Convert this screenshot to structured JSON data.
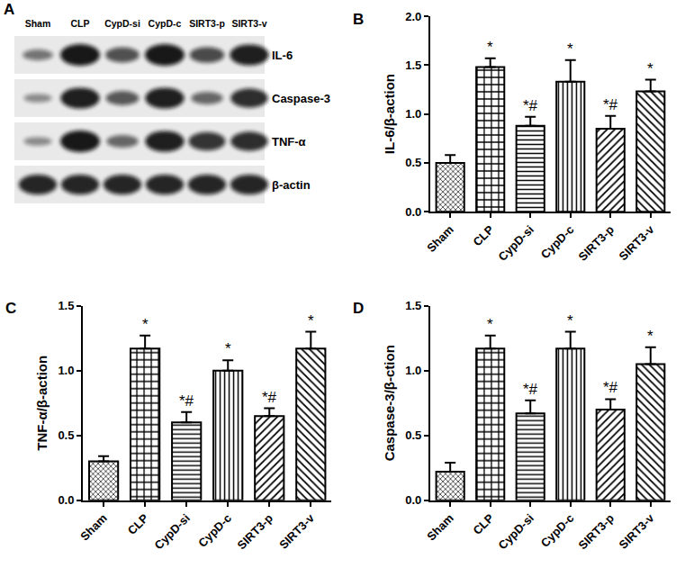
{
  "chart_data": [
    {
      "panel": "B",
      "type": "bar",
      "categories": [
        "Sham",
        "CLP",
        "CypD-si",
        "CypD-c",
        "SIRT3-p",
        "SIRT3-v"
      ],
      "values": [
        0.5,
        1.48,
        0.88,
        1.33,
        0.85,
        1.23
      ],
      "errors": [
        0.08,
        0.09,
        0.09,
        0.22,
        0.13,
        0.12
      ],
      "y_label": "IL-6/β-action",
      "ylim": [
        0,
        2
      ],
      "yticks": [
        {
          "value": 0,
          "label": "0.0"
        },
        {
          "value": 0.5,
          "label": "0.5"
        },
        {
          "value": 1,
          "label": "1.0"
        },
        {
          "value": 1.5,
          "label": "1.5"
        },
        {
          "value": 2,
          "label": "2.0"
        }
      ],
      "annotations": [
        {
          "category": "CLP",
          "text": "*"
        },
        {
          "category": "CypD-si",
          "text": "*#"
        },
        {
          "category": "CypD-c",
          "text": "*"
        },
        {
          "category": "SIRT3-p",
          "text": "*#"
        },
        {
          "category": "SIRT3-v",
          "text": "*"
        }
      ],
      "color": "#000000",
      "grid": false
    },
    {
      "panel": "C",
      "type": "bar",
      "categories": [
        "Sham",
        "CLP",
        "CypD-si",
        "CypD-c",
        "SIRT3-p",
        "SIRT3-v"
      ],
      "values": [
        0.3,
        1.17,
        0.6,
        1.0,
        0.65,
        1.17
      ],
      "errors": [
        0.04,
        0.1,
        0.08,
        0.08,
        0.06,
        0.13
      ],
      "y_label": "TNF-α/β-action",
      "ylim": [
        0,
        1.5
      ],
      "yticks": [
        {
          "value": 0,
          "label": "0.0"
        },
        {
          "value": 0.5,
          "label": "0.5"
        },
        {
          "value": 1,
          "label": "1.0"
        },
        {
          "value": 1.5,
          "label": "1.5"
        }
      ],
      "annotations": [
        {
          "category": "CLP",
          "text": "*"
        },
        {
          "category": "CypD-si",
          "text": "*#"
        },
        {
          "category": "CypD-c",
          "text": "*"
        },
        {
          "category": "SIRT3-p",
          "text": "*#"
        },
        {
          "category": "SIRT3-v",
          "text": "*"
        }
      ],
      "color": "#000000",
      "grid": false
    },
    {
      "panel": "D",
      "type": "bar",
      "categories": [
        "Sham",
        "CLP",
        "CypD-si",
        "CypD-c",
        "SIRT3-p",
        "SIRT3-v"
      ],
      "values": [
        0.22,
        1.17,
        0.67,
        1.17,
        0.7,
        1.05
      ],
      "errors": [
        0.07,
        0.1,
        0.1,
        0.13,
        0.08,
        0.13
      ],
      "y_label": "Caspase-3/β-ction",
      "ylim": [
        0,
        1.5
      ],
      "yticks": [
        {
          "value": 0,
          "label": "0.0"
        },
        {
          "value": 0.5,
          "label": "0.5"
        },
        {
          "value": 1,
          "label": "1.0"
        },
        {
          "value": 1.5,
          "label": "1.5"
        }
      ],
      "annotations": [
        {
          "category": "CLP",
          "text": "*"
        },
        {
          "category": "CypD-si",
          "text": "*#"
        },
        {
          "category": "CypD-c",
          "text": "*"
        },
        {
          "category": "SIRT3-p",
          "text": "*#"
        },
        {
          "category": "SIRT3-v",
          "text": "*"
        }
      ],
      "color": "#000000",
      "grid": false
    }
  ],
  "blot": {
    "panel": "A",
    "lanes": [
      "Sham",
      "CLP",
      "CypD-si",
      "CypD-c",
      "SIRT3-p",
      "SIRT3-v"
    ],
    "bands": [
      {
        "protein": "IL-6",
        "intensity": [
          0.35,
          1.0,
          0.6,
          1.0,
          0.65,
          0.95
        ]
      },
      {
        "protein": "Caspase-3",
        "intensity": [
          0.2,
          0.95,
          0.55,
          0.95,
          0.45,
          0.85
        ]
      },
      {
        "protein": "TNF-α",
        "intensity": [
          0.2,
          1.0,
          0.45,
          0.95,
          0.8,
          0.85
        ]
      },
      {
        "protein": "β-actin",
        "intensity": [
          0.9,
          0.9,
          0.9,
          0.9,
          0.9,
          0.9
        ]
      }
    ]
  }
}
